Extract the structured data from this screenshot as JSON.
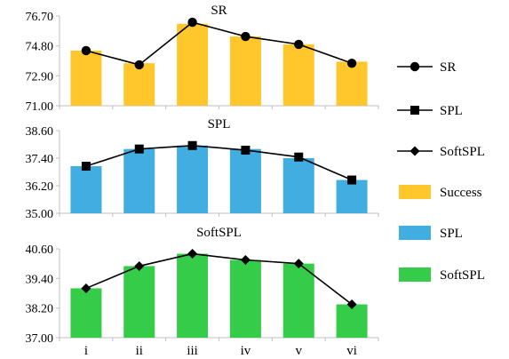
{
  "chart_data": [
    {
      "type": "bar",
      "title": "SR",
      "categories": [
        "i",
        "ii",
        "iii",
        "iv",
        "v",
        "vi"
      ],
      "ylim": [
        71.0,
        76.7
      ],
      "yticks": [
        "71.00",
        "72.90",
        "74.80",
        "76.70"
      ],
      "bar_color": "#FFC72C",
      "series": [
        {
          "name": "Success",
          "kind": "bar",
          "values": [
            74.5,
            73.7,
            76.2,
            75.4,
            74.9,
            73.8
          ]
        },
        {
          "name": "SR",
          "kind": "line",
          "marker": "circle",
          "values": [
            74.5,
            73.6,
            76.3,
            75.4,
            74.9,
            73.7
          ]
        }
      ]
    },
    {
      "type": "bar",
      "title": "SPL",
      "categories": [
        "i",
        "ii",
        "iii",
        "iv",
        "v",
        "vi"
      ],
      "ylim": [
        35.0,
        38.6
      ],
      "yticks": [
        "35.00",
        "36.20",
        "37.40",
        "38.60"
      ],
      "bar_color": "#41ADE0",
      "series": [
        {
          "name": "SPL",
          "kind": "bar",
          "values": [
            37.05,
            37.8,
            37.95,
            37.8,
            37.4,
            36.45
          ]
        },
        {
          "name": "SPL",
          "kind": "line",
          "marker": "square",
          "values": [
            37.05,
            37.8,
            37.95,
            37.75,
            37.45,
            36.45
          ]
        }
      ]
    },
    {
      "type": "bar",
      "title": "SoftSPL",
      "categories": [
        "i",
        "ii",
        "iii",
        "iv",
        "v",
        "vi"
      ],
      "ylim": [
        37.0,
        40.6
      ],
      "yticks": [
        "37.00",
        "38.20",
        "39.40",
        "40.60"
      ],
      "bar_color": "#35CC4A",
      "series": [
        {
          "name": "SoftSPL",
          "kind": "bar",
          "values": [
            39.0,
            39.9,
            40.4,
            40.15,
            40.0,
            38.35
          ]
        },
        {
          "name": "SoftSPL",
          "kind": "line",
          "marker": "diamond",
          "values": [
            39.0,
            39.9,
            40.4,
            40.15,
            40.0,
            38.35
          ]
        }
      ]
    }
  ],
  "legend": [
    {
      "label": "SR",
      "symbol": "line-circle"
    },
    {
      "label": "SPL",
      "symbol": "line-square"
    },
    {
      "label": "SoftSPL",
      "symbol": "line-diamond"
    },
    {
      "label": "Success",
      "symbol": "box",
      "color": "#FFC72C"
    },
    {
      "label": "SPL",
      "symbol": "box",
      "color": "#41ADE0"
    },
    {
      "label": "SoftSPL",
      "symbol": "box",
      "color": "#35CC4A"
    }
  ],
  "colors": {
    "axis": "#BFBFBF",
    "line": "#000000"
  }
}
